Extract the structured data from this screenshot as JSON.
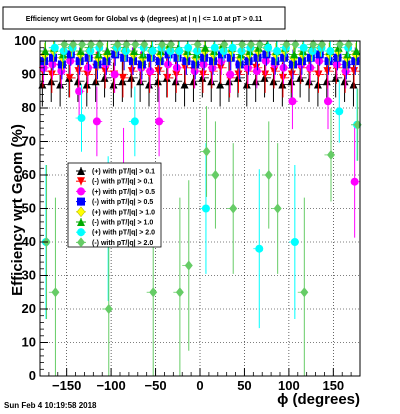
{
  "chart_data": {
    "type": "scatter",
    "title": "Efficiency wrt Geom for Global vs ϕ (degrees) at | η | <= 1.0 at pT > 0.11",
    "xlabel": "ϕ (degrees)",
    "ylabel": "Efficiency wrt Geom (%)",
    "xlim": [
      -180,
      180
    ],
    "ylim": [
      0,
      100
    ],
    "x_ticks": [
      -150,
      -100,
      -50,
      0,
      50,
      100,
      150
    ],
    "x_tick_labels": [
      "−150",
      "−100",
      "−50",
      "0",
      "50",
      "100",
      "150"
    ],
    "y_ticks": [
      0,
      10,
      20,
      30,
      40,
      50,
      60,
      70,
      80,
      90,
      100
    ],
    "y_tick_labels": [
      "0",
      "10",
      "20",
      "30",
      "40",
      "50",
      "60",
      "70",
      "80",
      "90",
      "100"
    ],
    "grid": true,
    "legend_position": "left-middle",
    "series": [
      {
        "name": "(+) with pT/|q| > 0.1",
        "color": "#000000",
        "marker": "triangle-up",
        "x": [
          -175,
          -165,
          -155,
          -145,
          -135,
          -125,
          -115,
          -105,
          -95,
          -85,
          -75,
          -65,
          -55,
          -45,
          -35,
          -25,
          -15,
          -5,
          5,
          15,
          25,
          35,
          45,
          55,
          65,
          75,
          85,
          95,
          105,
          115,
          125,
          135,
          145,
          155,
          165,
          175
        ],
        "y": [
          87,
          88,
          87,
          89,
          88,
          87,
          88,
          89,
          87,
          88,
          89,
          88,
          87,
          88,
          89,
          88,
          87,
          88,
          89,
          88,
          87,
          88,
          89,
          87,
          88,
          89,
          88,
          87,
          88,
          89,
          88,
          87,
          88,
          89,
          88,
          87
        ]
      },
      {
        "name": "(-) with pT/|q| > 0.1",
        "color": "#ff0000",
        "marker": "triangle-down",
        "x": [
          -175,
          -165,
          -155,
          -145,
          -135,
          -125,
          -115,
          -105,
          -95,
          -85,
          -75,
          -65,
          -55,
          -45,
          -35,
          -25,
          -15,
          -5,
          5,
          15,
          25,
          35,
          45,
          55,
          65,
          75,
          85,
          95,
          105,
          115,
          125,
          135,
          145,
          155,
          165,
          175
        ],
        "y": [
          91,
          90,
          92,
          89,
          91,
          90,
          92,
          91,
          90,
          89,
          91,
          92,
          90,
          91,
          89,
          90,
          92,
          91,
          90,
          91,
          92,
          89,
          90,
          91,
          92,
          90,
          91,
          89,
          90,
          92,
          91,
          90,
          91,
          92,
          90,
          91
        ]
      },
      {
        "name": "(+) with pT/|q| > 0.5",
        "color": "#ff00ff",
        "marker": "circle",
        "x": [
          -175,
          -165,
          -155,
          -145,
          -135,
          -125,
          -115,
          -105,
          -95,
          -85,
          -75,
          -65,
          -55,
          -45,
          -35,
          -25,
          -15,
          -5,
          5,
          15,
          25,
          35,
          45,
          55,
          65,
          75,
          85,
          95,
          105,
          115,
          125,
          135,
          145,
          155,
          165,
          175
        ],
        "y": [
          92,
          93,
          91,
          94,
          85,
          92,
          76,
          93,
          90,
          57,
          94,
          92,
          91,
          76,
          93,
          92,
          94,
          91,
          93,
          92,
          94,
          90,
          93,
          92,
          91,
          94,
          93,
          92,
          82,
          93,
          92,
          94,
          82,
          93,
          91,
          58
        ]
      },
      {
        "name": "(-) with pT/|q| > 0.5",
        "color": "#0000ff",
        "marker": "square",
        "x": [
          -175,
          -165,
          -155,
          -145,
          -135,
          -125,
          -115,
          -105,
          -95,
          -85,
          -75,
          -65,
          -55,
          -45,
          -35,
          -25,
          -15,
          -5,
          5,
          15,
          25,
          35,
          45,
          55,
          65,
          75,
          85,
          95,
          105,
          115,
          125,
          135,
          145,
          155,
          165,
          175
        ],
        "y": [
          94,
          95,
          93,
          96,
          94,
          95,
          93,
          94,
          96,
          95,
          94,
          93,
          95,
          94,
          96,
          95,
          94,
          93,
          95,
          94,
          96,
          95,
          93,
          94,
          95,
          96,
          94,
          95,
          93,
          94,
          95,
          96,
          94,
          95,
          93,
          94
        ]
      },
      {
        "name": "(+) with pT/|q| > 1.0",
        "color": "#ffff00",
        "marker": "diamond",
        "x": [
          -175,
          -165,
          -155,
          -145,
          -135,
          -125,
          -115,
          -105,
          -95,
          -85,
          -75,
          -65,
          -55,
          -45,
          -35,
          -25,
          -15,
          -5,
          5,
          15,
          25,
          35,
          45,
          55,
          65,
          75,
          85,
          95,
          105,
          115,
          125,
          135,
          145,
          155,
          165,
          175
        ],
        "y": [
          96,
          97,
          95,
          98,
          96,
          97,
          95,
          96,
          98,
          97,
          96,
          95,
          97,
          96,
          98,
          97,
          96,
          95,
          97,
          96,
          98,
          97,
          95,
          96,
          97,
          98,
          96,
          97,
          95,
          96,
          97,
          98,
          96,
          97,
          95,
          96
        ]
      },
      {
        "name": "(-) with pT/|q| > 1.0",
        "color": "#00aa00",
        "marker": "triangle-up",
        "x": [
          -175,
          -165,
          -155,
          -145,
          -135,
          -125,
          -115,
          -105,
          -95,
          -85,
          -75,
          -65,
          -55,
          -45,
          -35,
          -25,
          -15,
          -5,
          5,
          15,
          25,
          35,
          45,
          55,
          65,
          75,
          85,
          95,
          105,
          115,
          125,
          135,
          145,
          155,
          165,
          175
        ],
        "y": [
          97,
          98,
          96,
          99,
          97,
          98,
          96,
          97,
          99,
          98,
          97,
          96,
          98,
          97,
          99,
          98,
          97,
          96,
          98,
          97,
          99,
          98,
          96,
          97,
          98,
          99,
          97,
          98,
          96,
          97,
          98,
          99,
          97,
          98,
          96,
          97
        ]
      },
      {
        "name": "(+) with pT/|q| > 2.0",
        "color": "#00ffff",
        "marker": "circle",
        "x": [
          -175,
          -165,
          -155,
          -145,
          -135,
          -125,
          -115,
          -105,
          -95,
          -85,
          -75,
          -65,
          -55,
          -45,
          -35,
          -25,
          -15,
          -5,
          5,
          15,
          25,
          35,
          45,
          55,
          65,
          75,
          85,
          95,
          105,
          115,
          125,
          135,
          145,
          155,
          165,
          175
        ],
        "y": [
          40,
          98,
          97,
          98,
          77,
          97,
          98,
          44,
          98,
          97,
          76,
          98,
          97,
          98,
          97,
          97,
          98,
          97,
          50,
          98,
          97,
          98,
          97,
          98,
          38,
          98,
          97,
          98,
          40,
          98,
          97,
          98,
          97,
          79,
          98,
          75
        ]
      },
      {
        "name": "(-) with pT/|q| > 2.0",
        "color": "#66cc66",
        "marker": "diamond",
        "x": [
          -175,
          -165,
          -155,
          -145,
          -135,
          -125,
          -115,
          -105,
          -95,
          -85,
          -75,
          -65,
          -55,
          -45,
          -35,
          -25,
          -15,
          -5,
          5,
          15,
          25,
          35,
          45,
          55,
          65,
          75,
          85,
          95,
          105,
          115,
          125,
          135,
          145,
          155,
          165,
          175
        ],
        "y": [
          40,
          25,
          99,
          99,
          99,
          99,
          99,
          20,
          99,
          99,
          99,
          99,
          25,
          99,
          99,
          25,
          33,
          99,
          67,
          60,
          99,
          50,
          99,
          99,
          99,
          60,
          50,
          99,
          99,
          25,
          99,
          99,
          66,
          99,
          99,
          75
        ]
      }
    ]
  },
  "footer": {
    "timestamp": "Sun Feb  4 10:19:58 2018"
  }
}
